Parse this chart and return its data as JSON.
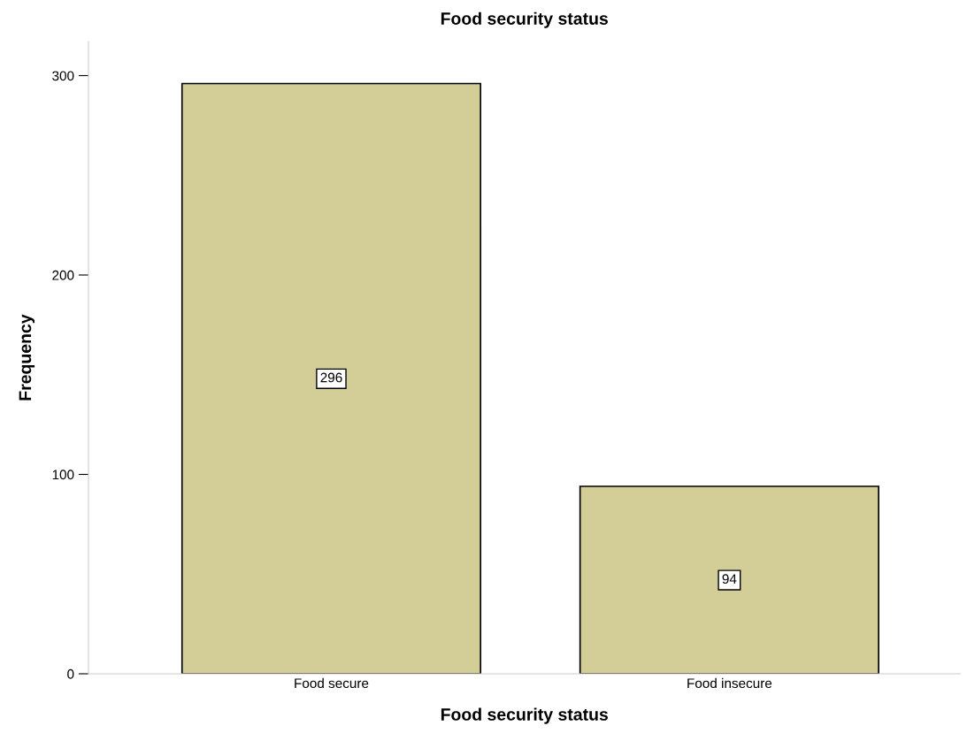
{
  "chart_data": {
    "type": "bar",
    "title": "Food security status",
    "xlabel": "Food security status",
    "ylabel": "Frequency",
    "categories": [
      "Food secure",
      "Food insecure"
    ],
    "values": [
      296,
      94
    ],
    "color": "#d3ce97",
    "ylim": [
      0,
      317
    ],
    "yticks": [
      0,
      100,
      200,
      300
    ],
    "grid": false,
    "data_labels": true
  }
}
